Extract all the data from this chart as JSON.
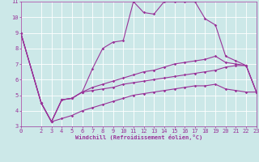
{
  "xlabel": "Windchill (Refroidissement éolien,°C)",
  "bg_color": "#cce8e8",
  "line_color": "#993399",
  "grid_color": "#ffffff",
  "xlim": [
    0,
    23
  ],
  "ylim": [
    3,
    11
  ],
  "xticks": [
    0,
    2,
    3,
    4,
    5,
    6,
    7,
    8,
    9,
    10,
    11,
    12,
    13,
    14,
    15,
    16,
    17,
    18,
    19,
    20,
    21,
    22,
    23
  ],
  "yticks": [
    3,
    4,
    5,
    6,
    7,
    8,
    9,
    10,
    11
  ],
  "line1_x": [
    0,
    2,
    3,
    4,
    5,
    6,
    7,
    8,
    9,
    10,
    11,
    12,
    13,
    14,
    15,
    16,
    17,
    18,
    19,
    20,
    21,
    22,
    23
  ],
  "line1_y": [
    9.0,
    4.5,
    3.3,
    4.7,
    4.8,
    5.2,
    6.7,
    8.0,
    8.4,
    8.5,
    11.0,
    10.3,
    10.2,
    11.0,
    11.0,
    11.0,
    11.0,
    9.9,
    9.5,
    7.5,
    7.2,
    6.9,
    5.2
  ],
  "line2_x": [
    0,
    2,
    3,
    4,
    5,
    6,
    7,
    8,
    9,
    10,
    11,
    12,
    13,
    14,
    15,
    16,
    17,
    18,
    19,
    20,
    21,
    22,
    23
  ],
  "line2_y": [
    9.0,
    4.5,
    3.3,
    4.7,
    4.8,
    5.2,
    5.5,
    5.7,
    5.9,
    6.1,
    6.3,
    6.5,
    6.6,
    6.8,
    7.0,
    7.1,
    7.2,
    7.3,
    7.5,
    7.1,
    7.0,
    6.9,
    5.2
  ],
  "line3_x": [
    0,
    2,
    3,
    4,
    5,
    6,
    7,
    8,
    9,
    10,
    11,
    12,
    13,
    14,
    15,
    16,
    17,
    18,
    19,
    20,
    21,
    22,
    23
  ],
  "line3_y": [
    9.0,
    4.5,
    3.3,
    4.7,
    4.8,
    5.2,
    5.3,
    5.4,
    5.5,
    5.7,
    5.8,
    5.9,
    6.0,
    6.1,
    6.2,
    6.3,
    6.4,
    6.5,
    6.6,
    6.8,
    6.9,
    6.9,
    5.2
  ],
  "line4_x": [
    0,
    2,
    3,
    4,
    5,
    6,
    7,
    8,
    9,
    10,
    11,
    12,
    13,
    14,
    15,
    16,
    17,
    18,
    19,
    20,
    21,
    22,
    23
  ],
  "line4_y": [
    9.0,
    4.5,
    3.3,
    3.5,
    3.7,
    4.0,
    4.2,
    4.4,
    4.6,
    4.8,
    5.0,
    5.1,
    5.2,
    5.3,
    5.4,
    5.5,
    5.6,
    5.6,
    5.7,
    5.4,
    5.3,
    5.2,
    5.2
  ],
  "xlabel_fontsize": 5.0,
  "tick_fontsize": 5.0,
  "marker_size": 1.8,
  "line_width": 0.8
}
